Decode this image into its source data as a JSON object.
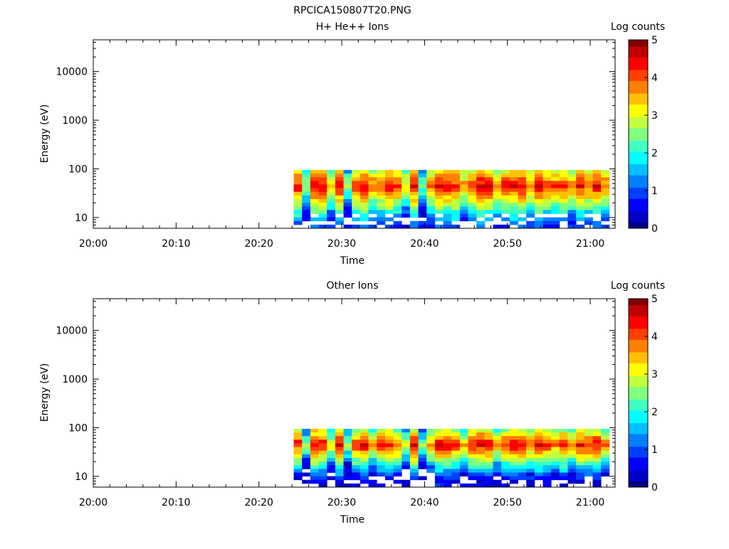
{
  "figure": {
    "title": "RPCICA150807T20.PNG"
  },
  "colorbar_colors": [
    "#000080",
    "#0000c8",
    "#0000ff",
    "#0040ff",
    "#0080ff",
    "#00c0ff",
    "#00ffff",
    "#40ffc0",
    "#80ff80",
    "#c0ff40",
    "#ffff00",
    "#ffc000",
    "#ff8000",
    "#ff4000",
    "#ff0000",
    "#c00000",
    "#800000"
  ],
  "chart_data": [
    {
      "type": "heatmap",
      "title": "H+ He++ Ions",
      "xlabel": "Time",
      "ylabel": "Energy (eV)",
      "x_ticks": [
        "20:00",
        "20:10",
        "20:20",
        "20:30",
        "20:40",
        "20:50",
        "21:00"
      ],
      "x_range_minutes": [
        0,
        63
      ],
      "y_ticks": [
        "10",
        "100",
        "1000",
        "10000"
      ],
      "y_scale": "log",
      "y_range": [
        6,
        45000
      ],
      "colorbar": {
        "label": "Log counts",
        "range": [
          0,
          5
        ],
        "ticks": [
          "0",
          "1",
          "2",
          "3",
          "4",
          "5"
        ]
      },
      "data_time_start_minutes": 24.2,
      "data_time_end_minutes": 62.3,
      "energy_bins_top": 95,
      "peak_energy": 45,
      "peak_log_counts": 5,
      "peak_profile": [
        4.7,
        3.2,
        4.8,
        4.9,
        3.8,
        4.8,
        3.0,
        4.6,
        4.9,
        4.2,
        4.5,
        4.7,
        4.4,
        3.6,
        4.8,
        2.9,
        4.2,
        4.9,
        4.8,
        4.7,
        4.0,
        4.6,
        4.9,
        4.8,
        4.2,
        4.6,
        4.7,
        4.8,
        4.3,
        4.9,
        4.5,
        4.4,
        4.6,
        4.2,
        4.8,
        4.5,
        4.7,
        4.3
      ]
    },
    {
      "type": "heatmap",
      "title": "Other Ions",
      "xlabel": "Time",
      "ylabel": "Energy (eV)",
      "x_ticks": [
        "20:00",
        "20:10",
        "20:20",
        "20:30",
        "20:40",
        "20:50",
        "21:00"
      ],
      "x_range_minutes": [
        0,
        63
      ],
      "y_ticks": [
        "10",
        "100",
        "1000",
        "10000"
      ],
      "y_scale": "log",
      "y_range": [
        6,
        45000
      ],
      "colorbar": {
        "label": "Log counts",
        "range": [
          0,
          5
        ],
        "ticks": [
          "0",
          "1",
          "2",
          "3",
          "4",
          "5"
        ]
      },
      "data_time_start_minutes": 24.2,
      "data_time_end_minutes": 62.3,
      "energy_bins_top": 95,
      "peak_energy": 45,
      "peak_log_counts": 5,
      "peak_profile": [
        4.6,
        3.0,
        4.9,
        4.7,
        3.6,
        4.9,
        3.1,
        4.5,
        4.8,
        4.0,
        4.6,
        4.8,
        4.3,
        3.4,
        4.9,
        3.0,
        4.1,
        4.8,
        4.9,
        4.6,
        3.9,
        4.7,
        4.8,
        4.9,
        4.1,
        4.6,
        4.8,
        4.7,
        4.4,
        4.9,
        4.6,
        4.3,
        4.7,
        4.1,
        4.8,
        4.6,
        4.8,
        4.2
      ]
    }
  ]
}
